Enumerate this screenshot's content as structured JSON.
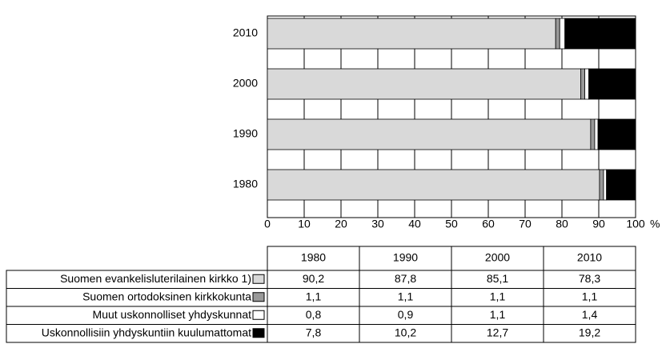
{
  "chart_data": {
    "type": "stacked_barh",
    "categories": [
      "1980",
      "1990",
      "2000",
      "2010"
    ],
    "series": [
      {
        "name": "Suomen evankelisluterilainen kirkko 1)",
        "color": "#d9d9d9",
        "values": [
          90.2,
          87.8,
          85.1,
          78.3
        ],
        "value_labels": [
          "90,2",
          "87,8",
          "85,1",
          "78,3"
        ]
      },
      {
        "name": "Suomen ortodoksinen kirkkokunta",
        "color": "#999999",
        "values": [
          1.1,
          1.1,
          1.1,
          1.1
        ],
        "value_labels": [
          "1,1",
          "1,1",
          "1,1",
          "1,1"
        ]
      },
      {
        "name": "Muut uskonnolliset yhdyskunnat",
        "color": "#ffffff",
        "values": [
          0.8,
          0.9,
          1.1,
          1.4
        ],
        "value_labels": [
          "0,8",
          "0,9",
          "1,1",
          "1,4"
        ]
      },
      {
        "name": "Uskonnollisiin yhdyskuntiin kuulumattomat",
        "color": "#000000",
        "values": [
          7.8,
          10.2,
          12.7,
          19.2
        ],
        "value_labels": [
          "7,8",
          "10,2",
          "12,7",
          "19,2"
        ]
      }
    ],
    "xlim": [
      0,
      100
    ],
    "xticks": [
      0,
      10,
      20,
      30,
      40,
      50,
      60,
      70,
      80,
      90,
      100
    ],
    "xlabel": "%",
    "grid": true
  }
}
